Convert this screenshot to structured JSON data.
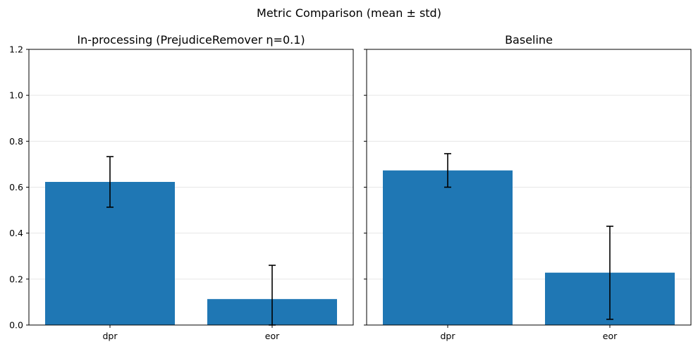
{
  "suptitle": "Metric Comparison (mean ± std)",
  "colors": {
    "bar": "#1f77b4",
    "errorbar": "#000000",
    "grid": "#e6e6e6",
    "axes": "#000000"
  },
  "chart_data": [
    {
      "type": "bar",
      "title": "In-processing (PrejudiceRemover η=0.1)",
      "categories": [
        "dpr",
        "eor"
      ],
      "values": [
        0.623,
        0.113
      ],
      "error_low": [
        0.513,
        0.0
      ],
      "error_high": [
        0.733,
        0.26
      ],
      "ylim": [
        0,
        1.2
      ],
      "yticks": [
        "0.0",
        "0.2",
        "0.4",
        "0.6",
        "0.8",
        "1.0",
        "1.2"
      ],
      "xlabel": "",
      "ylabel": "",
      "grid": "y"
    },
    {
      "type": "bar",
      "title": "Baseline",
      "categories": [
        "dpr",
        "eor"
      ],
      "values": [
        0.673,
        0.228
      ],
      "error_low": [
        0.6,
        0.025
      ],
      "error_high": [
        0.746,
        0.43
      ],
      "ylim": [
        0,
        1.2
      ],
      "yticks": [],
      "xlabel": "",
      "ylabel": "",
      "grid": "y"
    }
  ]
}
